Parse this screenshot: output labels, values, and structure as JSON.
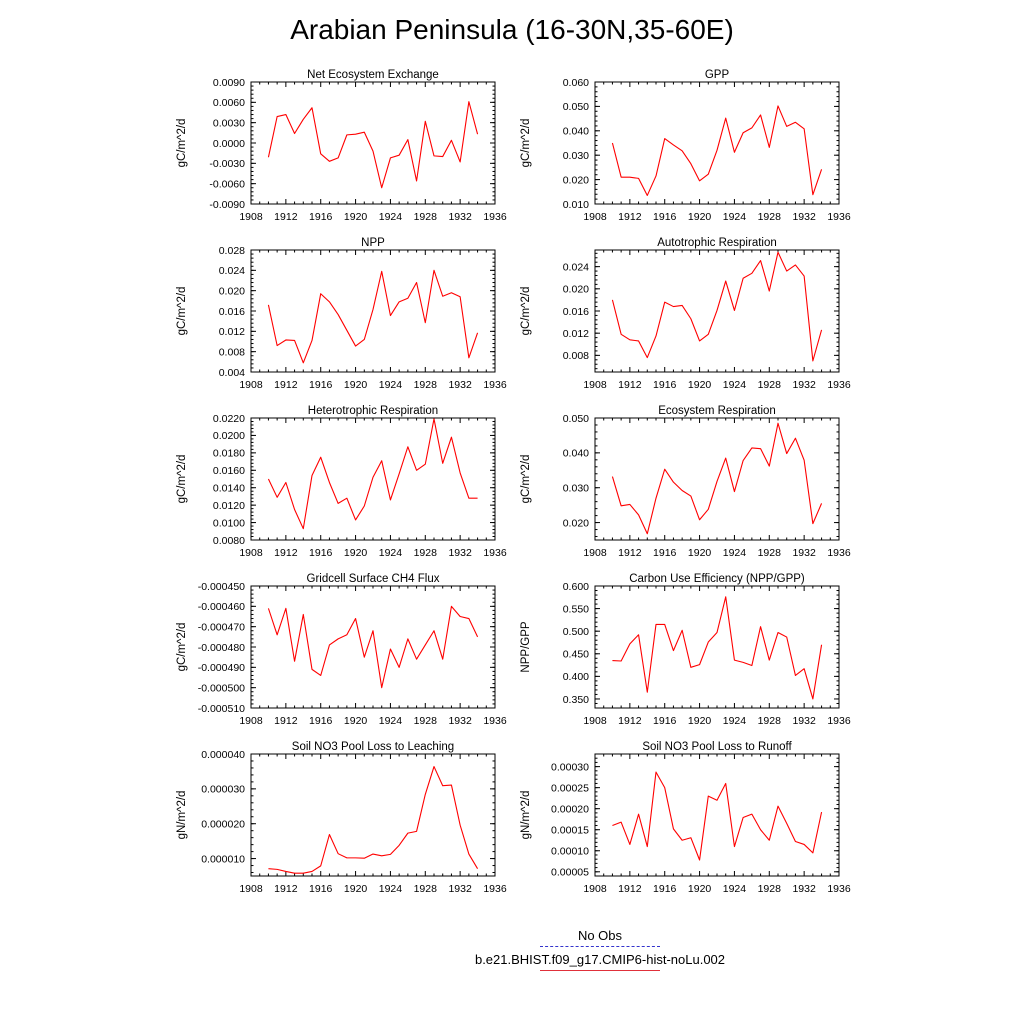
{
  "title": "Arabian Peninsula (16-30N,35-60E)",
  "colors": {
    "series": "#ff0000",
    "obs": "#3333cc",
    "axis": "#000000"
  },
  "legend": [
    {
      "label": "No Obs",
      "style": "dashed",
      "color": "#3333cc"
    },
    {
      "label": "b.e21.BHIST.f09_g17.CMIP6-hist-noLu.002",
      "style": "solid",
      "color": "#e0303a"
    }
  ],
  "chart_data": [
    {
      "type": "line",
      "title": "Net Ecosystem Exchange",
      "xlabel": "",
      "ylabel": "gC/m^2/d",
      "xlim": [
        1908,
        1936
      ],
      "xticks": [
        1908,
        1912,
        1916,
        1920,
        1924,
        1928,
        1932,
        1936
      ],
      "ylim": [
        -0.009,
        0.009
      ],
      "yticks": [
        -0.009,
        -0.006,
        -0.003,
        0.0,
        0.003,
        0.006,
        0.009
      ],
      "ytick_labels": [
        "-0.0090",
        "-0.0060",
        "-0.0030",
        "0.0000",
        "0.0030",
        "0.0060",
        "0.0090"
      ],
      "series": [
        {
          "x": [
            1910,
            1911,
            1912,
            1913,
            1914,
            1915,
            1916,
            1917,
            1918,
            1919,
            1920,
            1921,
            1922,
            1923,
            1924,
            1925,
            1926,
            1927,
            1928,
            1929,
            1930,
            1931,
            1932,
            1933,
            1934
          ],
          "y": [
            -0.0021,
            0.0039,
            0.0042,
            0.0014,
            0.0035,
            0.0052,
            -0.0016,
            -0.0027,
            -0.0022,
            0.0012,
            0.0013,
            0.0016,
            -0.0012,
            -0.0066,
            -0.0022,
            -0.0018,
            0.0005,
            -0.0056,
            0.0032,
            -0.0019,
            -0.002,
            0.0004,
            -0.0028,
            0.0061,
            0.0013
          ]
        }
      ]
    },
    {
      "type": "line",
      "title": "GPP",
      "xlabel": "",
      "ylabel": "gC/m^2/d",
      "xlim": [
        1908,
        1936
      ],
      "xticks": [
        1908,
        1912,
        1916,
        1920,
        1924,
        1928,
        1932,
        1936
      ],
      "ylim": [
        0.01,
        0.06
      ],
      "yticks": [
        0.01,
        0.02,
        0.03,
        0.04,
        0.05,
        0.06
      ],
      "ytick_labels": [
        "0.010",
        "0.020",
        "0.030",
        "0.040",
        "0.050",
        "0.060"
      ],
      "series": [
        {
          "x": [
            1910,
            1911,
            1912,
            1913,
            1914,
            1915,
            1916,
            1917,
            1918,
            1919,
            1920,
            1921,
            1922,
            1923,
            1924,
            1925,
            1926,
            1927,
            1928,
            1929,
            1930,
            1931,
            1932,
            1933,
            1934
          ],
          "y": [
            0.035,
            0.021,
            0.021,
            0.0205,
            0.0135,
            0.0215,
            0.0368,
            0.0342,
            0.0318,
            0.0265,
            0.0195,
            0.0222,
            0.032,
            0.0452,
            0.0312,
            0.0392,
            0.0412,
            0.0465,
            0.0332,
            0.0502,
            0.0418,
            0.0435,
            0.0408,
            0.0138,
            0.0242
          ]
        }
      ]
    },
    {
      "type": "line",
      "title": "NPP",
      "xlabel": "",
      "ylabel": "gC/m^2/d",
      "xlim": [
        1908,
        1936
      ],
      "xticks": [
        1908,
        1912,
        1916,
        1920,
        1924,
        1928,
        1932,
        1936
      ],
      "ylim": [
        0.004,
        0.028
      ],
      "yticks": [
        0.004,
        0.008,
        0.012,
        0.016,
        0.02,
        0.024,
        0.028
      ],
      "ytick_labels": [
        "0.004",
        "0.008",
        "0.012",
        "0.016",
        "0.020",
        "0.024",
        "0.028"
      ],
      "series": [
        {
          "x": [
            1910,
            1911,
            1912,
            1913,
            1914,
            1915,
            1916,
            1917,
            1918,
            1919,
            1920,
            1921,
            1922,
            1923,
            1924,
            1925,
            1926,
            1927,
            1928,
            1929,
            1930,
            1931,
            1932,
            1933,
            1934
          ],
          "y": [
            0.0172,
            0.0092,
            0.0103,
            0.0102,
            0.0058,
            0.0102,
            0.0194,
            0.0178,
            0.0153,
            0.0122,
            0.0091,
            0.0104,
            0.0163,
            0.0238,
            0.0151,
            0.0178,
            0.0185,
            0.0216,
            0.0137,
            0.024,
            0.0189,
            0.0196,
            0.0188,
            0.0068,
            0.0117
          ]
        }
      ]
    },
    {
      "type": "line",
      "title": "Autotrophic Respiration",
      "xlabel": "",
      "ylabel": "gC/m^2/d",
      "xlim": [
        1908,
        1936
      ],
      "xticks": [
        1908,
        1912,
        1916,
        1920,
        1924,
        1928,
        1932,
        1936
      ],
      "ylim": [
        0.005,
        0.027
      ],
      "yticks": [
        0.008,
        0.012,
        0.016,
        0.02,
        0.024
      ],
      "ytick_labels": [
        "0.008",
        "0.012",
        "0.016",
        "0.020",
        "0.024"
      ],
      "series": [
        {
          "x": [
            1910,
            1911,
            1912,
            1913,
            1914,
            1915,
            1916,
            1917,
            1918,
            1919,
            1920,
            1921,
            1922,
            1923,
            1924,
            1925,
            1926,
            1927,
            1928,
            1929,
            1930,
            1931,
            1932,
            1933,
            1934
          ],
          "y": [
            0.018,
            0.0118,
            0.0108,
            0.0106,
            0.0076,
            0.0115,
            0.0176,
            0.0168,
            0.017,
            0.0146,
            0.0106,
            0.0118,
            0.0161,
            0.0214,
            0.0161,
            0.0219,
            0.0228,
            0.0251,
            0.0196,
            0.0266,
            0.0232,
            0.0243,
            0.0223,
            0.007,
            0.0126
          ]
        }
      ]
    },
    {
      "type": "line",
      "title": "Heterotrophic Respiration",
      "xlabel": "",
      "ylabel": "gC/m^2/d",
      "xlim": [
        1908,
        1936
      ],
      "xticks": [
        1908,
        1912,
        1916,
        1920,
        1924,
        1928,
        1932,
        1936
      ],
      "ylim": [
        0.008,
        0.022
      ],
      "yticks": [
        0.008,
        0.01,
        0.012,
        0.014,
        0.016,
        0.018,
        0.02,
        0.022
      ],
      "ytick_labels": [
        "0.0080",
        "0.0100",
        "0.0120",
        "0.0140",
        "0.0160",
        "0.0180",
        "0.0200",
        "0.0220"
      ],
      "series": [
        {
          "x": [
            1910,
            1911,
            1912,
            1913,
            1914,
            1915,
            1916,
            1917,
            1918,
            1919,
            1920,
            1921,
            1922,
            1923,
            1924,
            1925,
            1926,
            1927,
            1928,
            1929,
            1930,
            1931,
            1932,
            1933,
            1934
          ],
          "y": [
            0.015,
            0.0129,
            0.0146,
            0.0115,
            0.0093,
            0.0154,
            0.0175,
            0.0146,
            0.0122,
            0.0128,
            0.0103,
            0.0119,
            0.0152,
            0.0171,
            0.0126,
            0.0156,
            0.0187,
            0.016,
            0.0167,
            0.0219,
            0.0168,
            0.0198,
            0.0157,
            0.0128,
            0.0128
          ]
        }
      ]
    },
    {
      "type": "line",
      "title": "Ecosystem Respiration",
      "xlabel": "",
      "ylabel": "gC/m^2/d",
      "xlim": [
        1908,
        1936
      ],
      "xticks": [
        1908,
        1912,
        1916,
        1920,
        1924,
        1928,
        1932,
        1936
      ],
      "ylim": [
        0.015,
        0.05
      ],
      "yticks": [
        0.02,
        0.03,
        0.04,
        0.05
      ],
      "ytick_labels": [
        "0.020",
        "0.030",
        "0.040",
        "0.050"
      ],
      "series": [
        {
          "x": [
            1910,
            1911,
            1912,
            1913,
            1914,
            1915,
            1916,
            1917,
            1918,
            1919,
            1920,
            1921,
            1922,
            1923,
            1924,
            1925,
            1926,
            1927,
            1928,
            1929,
            1930,
            1931,
            1932,
            1933,
            1934
          ],
          "y": [
            0.0332,
            0.0248,
            0.0252,
            0.0222,
            0.0168,
            0.027,
            0.0353,
            0.0316,
            0.0292,
            0.0276,
            0.0208,
            0.0238,
            0.0318,
            0.0385,
            0.0289,
            0.0378,
            0.0414,
            0.0412,
            0.0362,
            0.0485,
            0.0398,
            0.0442,
            0.0379,
            0.0197,
            0.0255
          ]
        }
      ]
    },
    {
      "type": "line",
      "title": "Gridcell Surface CH4 Flux",
      "xlabel": "",
      "ylabel": "gC/m^2/d",
      "xlim": [
        1908,
        1936
      ],
      "xticks": [
        1908,
        1912,
        1916,
        1920,
        1924,
        1928,
        1932,
        1936
      ],
      "ylim": [
        -0.00051,
        -0.00045
      ],
      "yticks": [
        -0.00051,
        -0.0005,
        -0.00049,
        -0.00048,
        -0.00047,
        -0.00046,
        -0.00045
      ],
      "ytick_labels": [
        "-0.000510",
        "-0.000500",
        "-0.000490",
        "-0.000480",
        "-0.000470",
        "-0.000460",
        "-0.000450"
      ],
      "series": [
        {
          "x": [
            1910,
            1911,
            1912,
            1913,
            1914,
            1915,
            1916,
            1917,
            1918,
            1919,
            1920,
            1921,
            1922,
            1923,
            1924,
            1925,
            1926,
            1927,
            1928,
            1929,
            1930,
            1931,
            1932,
            1933,
            1934
          ],
          "y": [
            -0.000461,
            -0.000474,
            -0.000461,
            -0.000487,
            -0.000464,
            -0.000491,
            -0.000494,
            -0.000479,
            -0.000476,
            -0.000474,
            -0.000466,
            -0.000485,
            -0.000472,
            -0.0005,
            -0.000481,
            -0.00049,
            -0.000476,
            -0.000486,
            -0.000479,
            -0.000472,
            -0.000486,
            -0.00046,
            -0.000465,
            -0.000466,
            -0.000475
          ]
        }
      ]
    },
    {
      "type": "line",
      "title": "Carbon Use Efficiency (NPP/GPP)",
      "xlabel": "",
      "ylabel": "NPP/GPP",
      "xlim": [
        1908,
        1936
      ],
      "xticks": [
        1908,
        1912,
        1916,
        1920,
        1924,
        1928,
        1932,
        1936
      ],
      "ylim": [
        0.33,
        0.6
      ],
      "yticks": [
        0.35,
        0.4,
        0.45,
        0.5,
        0.55,
        0.6
      ],
      "ytick_labels": [
        "0.350",
        "0.400",
        "0.450",
        "0.500",
        "0.550",
        "0.600"
      ],
      "series": [
        {
          "x": [
            1910,
            1911,
            1912,
            1913,
            1914,
            1915,
            1916,
            1917,
            1918,
            1919,
            1920,
            1921,
            1922,
            1923,
            1924,
            1925,
            1926,
            1927,
            1928,
            1929,
            1930,
            1931,
            1932,
            1933,
            1934
          ],
          "y": [
            0.435,
            0.434,
            0.472,
            0.492,
            0.365,
            0.515,
            0.515,
            0.457,
            0.502,
            0.42,
            0.426,
            0.476,
            0.497,
            0.576,
            0.436,
            0.431,
            0.424,
            0.51,
            0.436,
            0.497,
            0.487,
            0.402,
            0.417,
            0.35,
            0.47
          ]
        }
      ]
    },
    {
      "type": "line",
      "title": "Soil NO3 Pool Loss to Leaching",
      "xlabel": "",
      "ylabel": "gN/m^2/d",
      "xlim": [
        1908,
        1936
      ],
      "xticks": [
        1908,
        1912,
        1916,
        1920,
        1924,
        1928,
        1932,
        1936
      ],
      "ylim": [
        5e-06,
        4e-05
      ],
      "yticks": [
        1e-05,
        2e-05,
        3e-05,
        4e-05
      ],
      "ytick_labels": [
        "0.000010",
        "0.000020",
        "0.000030",
        "0.000040"
      ],
      "series": [
        {
          "x": [
            1910,
            1911,
            1912,
            1913,
            1914,
            1915,
            1916,
            1917,
            1918,
            1919,
            1920,
            1921,
            1922,
            1923,
            1924,
            1925,
            1926,
            1927,
            1928,
            1929,
            1930,
            1931,
            1932,
            1933,
            1934
          ],
          "y": [
            7.1e-06,
            6.9e-06,
            6.3e-06,
            5.8e-06,
            5.8e-06,
            6.3e-06,
            7.9e-06,
            1.69e-05,
            1.14e-05,
            1.02e-05,
            1.02e-05,
            1.01e-05,
            1.13e-05,
            1.08e-05,
            1.12e-05,
            1.38e-05,
            1.73e-05,
            1.78e-05,
            2.84e-05,
            3.64e-05,
            3.09e-05,
            3.11e-05,
            1.96e-05,
            1.13e-05,
            7.1e-06
          ]
        }
      ]
    },
    {
      "type": "line",
      "title": "Soil NO3 Pool Loss to Runoff",
      "xlabel": "",
      "ylabel": "gN/m^2/d",
      "xlim": [
        1908,
        1936
      ],
      "xticks": [
        1908,
        1912,
        1916,
        1920,
        1924,
        1928,
        1932,
        1936
      ],
      "ylim": [
        4e-05,
        0.00033
      ],
      "yticks": [
        5e-05,
        0.0001,
        0.00015,
        0.0002,
        0.00025,
        0.0003
      ],
      "ytick_labels": [
        "0.00005",
        "0.00010",
        "0.00015",
        "0.00020",
        "0.00025",
        "0.00030"
      ],
      "series": [
        {
          "x": [
            1910,
            1911,
            1912,
            1913,
            1914,
            1915,
            1916,
            1917,
            1918,
            1919,
            1920,
            1921,
            1922,
            1923,
            1924,
            1925,
            1926,
            1927,
            1928,
            1929,
            1930,
            1931,
            1932,
            1933,
            1934
          ],
          "y": [
            0.00016,
            0.000168,
            0.000115,
            0.000187,
            0.00011,
            0.000287,
            0.00025,
            0.000152,
            0.000125,
            0.000131,
            7.8e-05,
            0.00023,
            0.00022,
            0.00026,
            0.00011,
            0.000179,
            0.000187,
            0.00015,
            0.000125,
            0.000206,
            0.000165,
            0.000122,
            0.000115,
            9.5e-05,
            0.000192
          ]
        }
      ]
    }
  ]
}
